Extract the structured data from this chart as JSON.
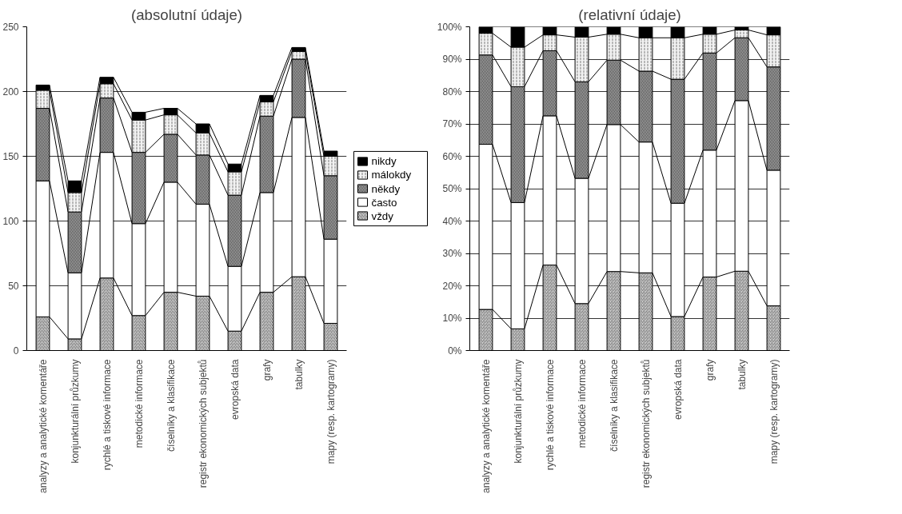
{
  "chart_data": [
    {
      "type": "bar",
      "title": "(absolutní údaje)",
      "stacked": true,
      "grid": "y",
      "legend": "right",
      "categories": [
        "analyzy a analytické komentáře",
        "konjunkturální průzkumy",
        "rychlé a tiskové informace",
        "metodické informace",
        "číselníky a klasifikace",
        "registr ekonomických subjektů",
        "evropská data",
        "grafy",
        "tabulky",
        "mapy (resp. kartogramy)"
      ],
      "ylim": [
        0,
        250
      ],
      "yticks": [
        0,
        50,
        100,
        150,
        200,
        250
      ],
      "series": [
        {
          "name": "vždy",
          "color": "#d9d9d9",
          "values": [
            26,
            9,
            56,
            27,
            45,
            42,
            15,
            45,
            57,
            21
          ]
        },
        {
          "name": "často",
          "color": "#ffffff",
          "values": [
            105,
            51,
            97,
            71,
            85,
            71,
            50,
            77,
            123,
            65
          ]
        },
        {
          "name": "někdy",
          "color": "#a6a6a6",
          "values": [
            56,
            47,
            42,
            55,
            37,
            38,
            55,
            59,
            45,
            49
          ]
        },
        {
          "name": "málokdy",
          "color": "#f2f2f2",
          "values": [
            14,
            15,
            11,
            25,
            15,
            17,
            18,
            11,
            6,
            15
          ]
        },
        {
          "name": "nikdy",
          "color": "#000000",
          "values": [
            4,
            9,
            5,
            6,
            5,
            7,
            6,
            5,
            3,
            4
          ]
        }
      ]
    },
    {
      "type": "bar",
      "title": "(relativní údaje)",
      "stacked": true,
      "grid": "y",
      "categories": [
        "analyzy a analytické komentáře",
        "konjunkturální průzkumy",
        "rychlé a tiskové informace",
        "metodické informace",
        "číselníky a klasifikace",
        "registr ekonomických subjektů",
        "evropská data",
        "grafy",
        "tabulky",
        "mapy (resp. kartogramy)"
      ],
      "ylim": [
        0,
        100
      ],
      "yticks": [
        {
          "value": 0,
          "label": "0%"
        },
        {
          "value": 10,
          "label": "10%"
        },
        {
          "value": 20,
          "label": "20%"
        },
        {
          "value": 30,
          "label": "30%"
        },
        {
          "value": 40,
          "label": "40%"
        },
        {
          "value": 50,
          "label": "50%"
        },
        {
          "value": 60,
          "label": "60%"
        },
        {
          "value": 70,
          "label": "70%"
        },
        {
          "value": 80,
          "label": "80%"
        },
        {
          "value": 90,
          "label": "90%"
        },
        {
          "value": 100,
          "label": "100%"
        }
      ],
      "series": [
        {
          "color": "#d9d9d9",
          "values": [
            12.7,
            6.7,
            26.4,
            14.5,
            24.4,
            24.0,
            10.5,
            22.7,
            24.5,
            13.8
          ]
        },
        {
          "color": "#ffffff",
          "values": [
            51.0,
            39.0,
            46.1,
            38.7,
            45.4,
            40.4,
            35.0,
            39.2,
            52.7,
            41.9
          ]
        },
        {
          "color": "#a6a6a6",
          "values": [
            27.6,
            35.8,
            20.1,
            29.8,
            19.9,
            21.9,
            38.3,
            30.0,
            19.4,
            31.9
          ]
        },
        {
          "color": "#f2f2f2",
          "values": [
            6.7,
            12.2,
            4.9,
            13.8,
            8.0,
            10.3,
            12.8,
            5.8,
            2.4,
            9.9
          ]
        },
        {
          "color": "#000000",
          "values": [
            2.0,
            6.3,
            2.5,
            3.2,
            2.3,
            3.4,
            3.4,
            2.3,
            1.0,
            2.5
          ]
        }
      ]
    }
  ]
}
